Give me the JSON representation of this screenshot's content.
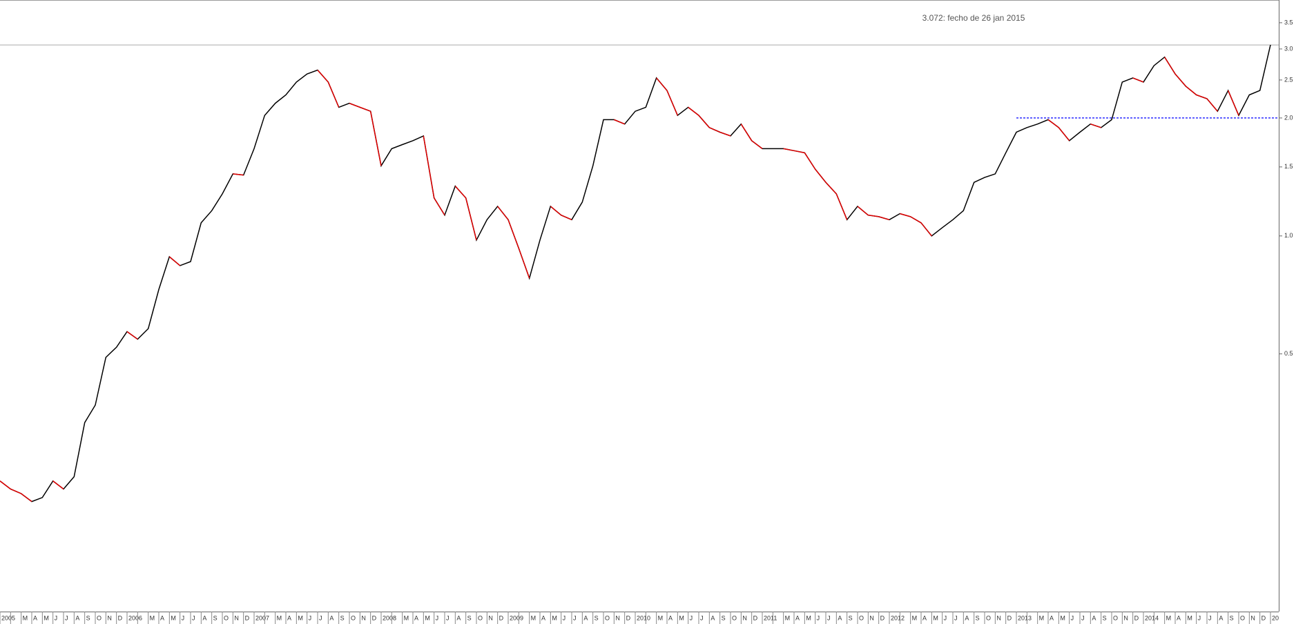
{
  "chart_data": {
    "type": "line",
    "log_scale": true,
    "color": "#000000",
    "annotation": "3.072: fecho de 26 jan 2015",
    "last_close": 3.072,
    "reference_lines": [
      {
        "value": 2.0,
        "color": "#0000ff"
      }
    ],
    "categories": [
      "2005",
      null,
      "M",
      "A",
      "M",
      "J",
      "J",
      "A",
      "S",
      "O",
      "N",
      "D",
      "2006",
      null,
      "M",
      "A",
      "M",
      "J",
      "J",
      "A",
      "S",
      "O",
      "N",
      "D",
      "2007",
      null,
      "M",
      "A",
      "M",
      "J",
      "J",
      "A",
      "S",
      "O",
      "N",
      "D",
      "2008",
      null,
      "M",
      "A",
      "M",
      "J",
      "J",
      "A",
      "S",
      "O",
      "N",
      "D",
      "2009",
      null,
      "M",
      "A",
      "M",
      "J",
      "J",
      "A",
      "S",
      "O",
      "N",
      "D",
      "2010",
      null,
      "M",
      "A",
      "M",
      "J",
      "J",
      "A",
      "S",
      "O",
      "N",
      "D",
      "2011",
      null,
      "M",
      "A",
      "M",
      "J",
      "J",
      "A",
      "S",
      "O",
      "N",
      "D",
      "2012",
      null,
      "M",
      "A",
      "M",
      "J",
      "J",
      "A",
      "S",
      "O",
      "N",
      "D",
      "2013",
      null,
      "M",
      "A",
      "M",
      "J",
      "J",
      "A",
      "S",
      "O",
      "N",
      "D",
      "2014",
      null,
      "M",
      "A",
      "M",
      "J",
      "J",
      "A",
      "S",
      "O",
      "N",
      "D",
      "20"
    ],
    "values": [
      0.237,
      0.226,
      0.22,
      0.21,
      0.215,
      0.237,
      0.226,
      0.243,
      0.334,
      0.37,
      0.49,
      0.52,
      0.57,
      0.545,
      0.58,
      0.73,
      0.885,
      0.84,
      0.86,
      1.08,
      1.16,
      1.28,
      1.44,
      1.43,
      1.67,
      2.03,
      2.18,
      2.29,
      2.47,
      2.59,
      2.65,
      2.47,
      2.13,
      2.18,
      2.13,
      2.08,
      1.51,
      1.67,
      1.71,
      1.75,
      1.8,
      1.25,
      1.13,
      1.34,
      1.25,
      0.976,
      1.1,
      1.19,
      1.1,
      0.93,
      0.78,
      0.976,
      1.19,
      1.13,
      1.1,
      1.22,
      1.51,
      1.98,
      1.98,
      1.93,
      2.08,
      2.13,
      2.53,
      2.35,
      2.03,
      2.13,
      2.03,
      1.89,
      1.84,
      1.8,
      1.93,
      1.75,
      1.67,
      1.67,
      1.67,
      1.65,
      1.63,
      1.48,
      1.37,
      1.28,
      1.1,
      1.19,
      1.13,
      1.12,
      1.1,
      1.14,
      1.12,
      1.08,
      1.0,
      1.05,
      1.1,
      1.16,
      1.37,
      1.41,
      1.44,
      1.63,
      1.84,
      1.89,
      1.93,
      1.98,
      1.89,
      1.75,
      1.84,
      1.93,
      1.89,
      1.98,
      2.47,
      2.53,
      2.47,
      2.72,
      2.86,
      2.59,
      2.41,
      2.29,
      2.24,
      2.08,
      2.35,
      2.03,
      2.29,
      2.35,
      3.072
    ],
    "ylim": [
      0.11,
      4.0
    ],
    "yticks": [
      0.5,
      {
        "value": 1,
        "label": "1.0"
      },
      1.5,
      {
        "value": 2,
        "label": "2.0"
      },
      2.5,
      {
        "value": 3,
        "label": "3.0"
      },
      3.5
    ]
  }
}
